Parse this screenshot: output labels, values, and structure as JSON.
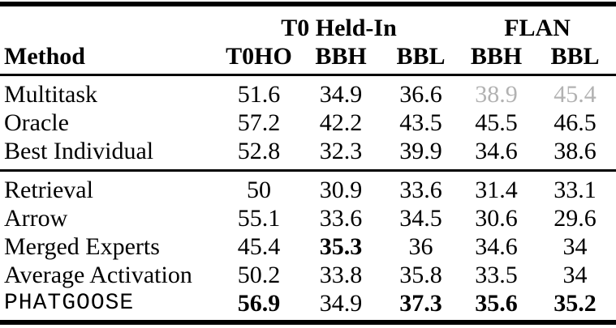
{
  "colors": {
    "text": "#000000",
    "muted_values": "#b2b2b2",
    "rules": "#000000",
    "background": "#ffffff"
  },
  "table": {
    "column_groups": [
      {
        "label": "T0 Held-In",
        "span": 3
      },
      {
        "label": "FLAN",
        "span": 2
      }
    ],
    "header": {
      "method": "Method",
      "cols": [
        "T0HO",
        "BBH",
        "BBL",
        "BBH",
        "BBL"
      ]
    },
    "sections": [
      {
        "rows": [
          {
            "method": "Multitask",
            "values": [
              "51.6",
              "34.9",
              "36.6",
              "38.9",
              "45.4"
            ]
          },
          {
            "method": "Oracle",
            "values": [
              "57.2",
              "42.2",
              "43.5",
              "45.5",
              "46.5"
            ]
          },
          {
            "method": "Best Individual",
            "values": [
              "52.8",
              "32.3",
              "39.9",
              "34.6",
              "38.6"
            ]
          }
        ]
      },
      {
        "rows": [
          {
            "method": "Retrieval",
            "values": [
              "50",
              "30.9",
              "33.6",
              "31.4",
              "33.1"
            ]
          },
          {
            "method": "Arrow",
            "values": [
              "55.1",
              "33.6",
              "34.5",
              "30.6",
              "29.6"
            ]
          },
          {
            "method": "Merged Experts",
            "values": [
              "45.4",
              "35.3",
              "36",
              "34.6",
              "34"
            ]
          },
          {
            "method": "Average Activation",
            "values": [
              "50.2",
              "33.8",
              "35.8",
              "33.5",
              "34"
            ]
          },
          {
            "method": "PHATGOOSE",
            "values": [
              "56.9",
              "34.9",
              "37.3",
              "35.6",
              "35.2"
            ]
          }
        ]
      }
    ]
  }
}
